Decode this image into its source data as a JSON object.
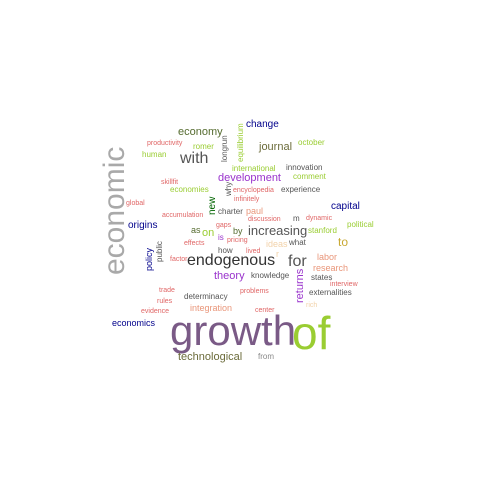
{
  "word_cloud": {
    "words": [
      {
        "text": "growth",
        "color": "#7a5a86"
      },
      {
        "text": "of",
        "color": "#9acd32"
      },
      {
        "text": "economic",
        "color": "#a9a9a9"
      },
      {
        "text": "endogenous",
        "color": "#333333"
      },
      {
        "text": "with",
        "color": "#555555"
      },
      {
        "text": "for",
        "color": "#555555"
      },
      {
        "text": "increasing",
        "color": "#555555"
      },
      {
        "text": "economy",
        "color": "#556b2f"
      },
      {
        "text": "journal",
        "color": "#6b6b3a"
      },
      {
        "text": "development",
        "color": "#9932cc"
      },
      {
        "text": "technological",
        "color": "#6b6b3a"
      },
      {
        "text": "to",
        "color": "#c8a832"
      },
      {
        "text": "returns",
        "color": "#9932cc"
      },
      {
        "text": "theory",
        "color": "#9932cc"
      },
      {
        "text": "on",
        "color": "#9acd32"
      },
      {
        "text": "capital",
        "color": "#00008b"
      },
      {
        "text": "change",
        "color": "#00008b"
      },
      {
        "text": "origins",
        "color": "#00008b"
      },
      {
        "text": "economics",
        "color": "#00008b"
      },
      {
        "text": "policy",
        "color": "#00008b"
      },
      {
        "text": "new",
        "color": "#006400"
      },
      {
        "text": "integration",
        "color": "#e9967a"
      },
      {
        "text": "paul",
        "color": "#e9967a"
      },
      {
        "text": "labor",
        "color": "#e9967a"
      },
      {
        "text": "research",
        "color": "#e9967a"
      },
      {
        "text": "political",
        "color": "#9acd32"
      },
      {
        "text": "economies",
        "color": "#9acd32"
      },
      {
        "text": "stanford",
        "color": "#9acd32"
      },
      {
        "text": "comment",
        "color": "#9acd32"
      },
      {
        "text": "october",
        "color": "#9acd32"
      },
      {
        "text": "romer",
        "color": "#9acd32"
      },
      {
        "text": "human",
        "color": "#9acd32"
      },
      {
        "text": "international",
        "color": "#9acd32"
      },
      {
        "text": "equilibrium",
        "color": "#9acd32"
      },
      {
        "text": "as",
        "color": "#556b2f"
      },
      {
        "text": "by",
        "color": "#556b2f"
      },
      {
        "text": "knowledge",
        "color": "#555555"
      },
      {
        "text": "innovation",
        "color": "#555555"
      },
      {
        "text": "experience",
        "color": "#555555"
      },
      {
        "text": "externalities",
        "color": "#555555"
      },
      {
        "text": "determinacy",
        "color": "#555555"
      },
      {
        "text": "states",
        "color": "#555555"
      },
      {
        "text": "what",
        "color": "#555555"
      },
      {
        "text": "charter",
        "color": "#555555"
      },
      {
        "text": "why",
        "color": "#555555"
      },
      {
        "text": "longrun",
        "color": "#555555"
      },
      {
        "text": "public",
        "color": "#555555"
      },
      {
        "text": "from",
        "color": "#888888"
      },
      {
        "text": "how",
        "color": "#555555"
      },
      {
        "text": "m",
        "color": "#555555"
      },
      {
        "text": "is",
        "color": "#9932cc"
      },
      {
        "text": "productivity",
        "color": "#e06666"
      },
      {
        "text": "skillfit",
        "color": "#e06666"
      },
      {
        "text": "global",
        "color": "#e06666"
      },
      {
        "text": "accumulation",
        "color": "#e06666"
      },
      {
        "text": "effects",
        "color": "#e06666"
      },
      {
        "text": "factor",
        "color": "#e06666"
      },
      {
        "text": "encyclopedia",
        "color": "#e06666"
      },
      {
        "text": "infinitely",
        "color": "#e06666"
      },
      {
        "text": "discussion",
        "color": "#e06666"
      },
      {
        "text": "pricing",
        "color": "#e06666"
      },
      {
        "text": "lived",
        "color": "#e06666"
      },
      {
        "text": "dynamic",
        "color": "#e06666"
      },
      {
        "text": "trade",
        "color": "#e06666"
      },
      {
        "text": "rules",
        "color": "#e06666"
      },
      {
        "text": "evidence",
        "color": "#e06666"
      },
      {
        "text": "problems",
        "color": "#e06666"
      },
      {
        "text": "center",
        "color": "#e06666"
      },
      {
        "text": "interview",
        "color": "#e06666"
      },
      {
        "text": "gaps",
        "color": "#e06666"
      },
      {
        "text": "ideas",
        "color": "#f2d2a9"
      },
      {
        "text": "r",
        "color": "#f2d2a9"
      },
      {
        "text": "rich",
        "color": "#f2d2a9"
      }
    ]
  }
}
